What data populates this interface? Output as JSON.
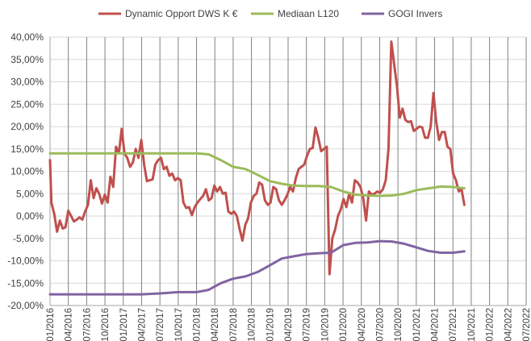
{
  "chart_data": {
    "type": "line",
    "title": "",
    "xlabel": "",
    "ylabel": "",
    "ylim": [
      -20,
      40
    ],
    "yticks": [
      -20,
      -15,
      -10,
      -5,
      0,
      5,
      10,
      15,
      20,
      25,
      30,
      35,
      40
    ],
    "ytick_labels": [
      "-20,00%",
      "-15,00%",
      "-10,00%",
      "-5,00%",
      "0,00%",
      "5,00%",
      "10,00%",
      "15,00%",
      "20,00%",
      "25,00%",
      "30,00%",
      "35,00%",
      "40,00%"
    ],
    "xlim": [
      "2016-01-01",
      "2022-07-01"
    ],
    "xtick_labels": [
      "1/01/2016",
      "1/04/2016",
      "1/07/2016",
      "1/10/2016",
      "1/01/2017",
      "1/04/2017",
      "1/07/2017",
      "1/10/2017",
      "1/01/2018",
      "1/04/2018",
      "1/07/2018",
      "1/10/2018",
      "1/01/2019",
      "1/04/2019",
      "1/07/2019",
      "1/10/2019",
      "1/01/2020",
      "1/04/2020",
      "1/07/2020",
      "1/10/2020",
      "1/01/2021",
      "1/04/2021",
      "1/07/2021",
      "1/10/2021",
      "1/01/2022",
      "1/04/2022",
      "1/07/2022"
    ],
    "grid": true,
    "legend_position": "top",
    "series": [
      {
        "name": "Dynamic Opport DWS K €",
        "color": "#c0504d",
        "points": [
          [
            "2016-01-01",
            12.5
          ],
          [
            "2016-01-08",
            3.0
          ],
          [
            "2016-01-22",
            0.5
          ],
          [
            "2016-02-05",
            -3.5
          ],
          [
            "2016-02-19",
            -1.0
          ],
          [
            "2016-03-04",
            -2.8
          ],
          [
            "2016-03-18",
            -2.5
          ],
          [
            "2016-04-01",
            1.2
          ],
          [
            "2016-04-15",
            0.0
          ],
          [
            "2016-04-29",
            -1.2
          ],
          [
            "2016-05-13",
            -0.8
          ],
          [
            "2016-05-27",
            -0.3
          ],
          [
            "2016-06-10",
            -0.8
          ],
          [
            "2016-06-24",
            1.0
          ],
          [
            "2016-07-08",
            2.5
          ],
          [
            "2016-07-22",
            8.0
          ],
          [
            "2016-08-05",
            4.0
          ],
          [
            "2016-08-19",
            6.2
          ],
          [
            "2016-09-02",
            5.0
          ],
          [
            "2016-09-16",
            2.8
          ],
          [
            "2016-09-30",
            4.8
          ],
          [
            "2016-10-14",
            3.0
          ],
          [
            "2016-10-28",
            8.8
          ],
          [
            "2016-11-11",
            6.5
          ],
          [
            "2016-11-25",
            15.5
          ],
          [
            "2016-12-09",
            14.0
          ],
          [
            "2016-12-23",
            19.5
          ],
          [
            "2017-01-06",
            14.0
          ],
          [
            "2017-01-20",
            13.0
          ],
          [
            "2017-02-03",
            11.0
          ],
          [
            "2017-02-17",
            12.0
          ],
          [
            "2017-03-03",
            15.0
          ],
          [
            "2017-03-17",
            13.0
          ],
          [
            "2017-03-31",
            17.0
          ],
          [
            "2017-04-14",
            11.5
          ],
          [
            "2017-04-28",
            7.8
          ],
          [
            "2017-05-12",
            8.0
          ],
          [
            "2017-05-26",
            8.2
          ],
          [
            "2017-06-09",
            11.5
          ],
          [
            "2017-06-23",
            12.5
          ],
          [
            "2017-07-07",
            13.0
          ],
          [
            "2017-07-21",
            10.5
          ],
          [
            "2017-08-04",
            11.0
          ],
          [
            "2017-08-18",
            9.0
          ],
          [
            "2017-09-01",
            9.5
          ],
          [
            "2017-09-15",
            8.0
          ],
          [
            "2017-09-29",
            8.5
          ],
          [
            "2017-10-13",
            8.0
          ],
          [
            "2017-10-27",
            3.0
          ],
          [
            "2017-11-10",
            1.8
          ],
          [
            "2017-11-24",
            2.0
          ],
          [
            "2017-12-08",
            0.2
          ],
          [
            "2017-12-22",
            2.0
          ],
          [
            "2018-01-05",
            3.0
          ],
          [
            "2018-01-19",
            3.8
          ],
          [
            "2018-02-02",
            4.5
          ],
          [
            "2018-02-16",
            6.0
          ],
          [
            "2018-03-02",
            3.5
          ],
          [
            "2018-03-16",
            4.0
          ],
          [
            "2018-03-30",
            6.8
          ],
          [
            "2018-04-13",
            5.5
          ],
          [
            "2018-04-27",
            6.5
          ],
          [
            "2018-05-11",
            5.0
          ],
          [
            "2018-05-25",
            5.2
          ],
          [
            "2018-06-08",
            1.0
          ],
          [
            "2018-06-22",
            0.5
          ],
          [
            "2018-07-06",
            1.0
          ],
          [
            "2018-07-20",
            0.0
          ],
          [
            "2018-08-03",
            -3.0
          ],
          [
            "2018-08-17",
            -5.5
          ],
          [
            "2018-08-31",
            -2.0
          ],
          [
            "2018-09-14",
            -0.5
          ],
          [
            "2018-09-28",
            3.0
          ],
          [
            "2018-10-12",
            4.5
          ],
          [
            "2018-10-26",
            5.0
          ],
          [
            "2018-11-09",
            7.5
          ],
          [
            "2018-11-23",
            7.0
          ],
          [
            "2018-12-07",
            3.5
          ],
          [
            "2018-12-21",
            2.5
          ],
          [
            "2019-01-04",
            3.0
          ],
          [
            "2019-01-18",
            6.5
          ],
          [
            "2019-02-01",
            6.0
          ],
          [
            "2019-02-15",
            3.5
          ],
          [
            "2019-03-01",
            2.5
          ],
          [
            "2019-03-15",
            3.5
          ],
          [
            "2019-03-29",
            4.8
          ],
          [
            "2019-04-12",
            6.5
          ],
          [
            "2019-04-26",
            5.5
          ],
          [
            "2019-05-10",
            8.5
          ],
          [
            "2019-05-24",
            10.5
          ],
          [
            "2019-06-07",
            11.0
          ],
          [
            "2019-06-21",
            11.5
          ],
          [
            "2019-07-05",
            13.5
          ],
          [
            "2019-07-19",
            15.0
          ],
          [
            "2019-08-02",
            15.2
          ],
          [
            "2019-08-16",
            19.8
          ],
          [
            "2019-08-30",
            17.5
          ],
          [
            "2019-09-13",
            14.5
          ],
          [
            "2019-09-27",
            15.0
          ],
          [
            "2019-10-11",
            15.5
          ],
          [
            "2019-10-25",
            -13.0
          ],
          [
            "2019-11-08",
            -5.0
          ],
          [
            "2019-11-22",
            -3.0
          ],
          [
            "2019-12-06",
            0.0
          ],
          [
            "2019-12-20",
            1.5
          ],
          [
            "2020-01-03",
            3.8
          ],
          [
            "2020-01-17",
            2.0
          ],
          [
            "2020-01-31",
            5.0
          ],
          [
            "2020-02-14",
            3.0
          ],
          [
            "2020-02-28",
            8.0
          ],
          [
            "2020-03-13",
            7.5
          ],
          [
            "2020-03-27",
            6.5
          ],
          [
            "2020-04-10",
            4.0
          ],
          [
            "2020-04-24",
            -1.0
          ],
          [
            "2020-05-08",
            5.5
          ],
          [
            "2020-05-22",
            4.8
          ],
          [
            "2020-06-05",
            5.0
          ],
          [
            "2020-06-19",
            5.5
          ],
          [
            "2020-07-03",
            5.2
          ],
          [
            "2020-07-17",
            6.0
          ],
          [
            "2020-07-31",
            8.0
          ],
          [
            "2020-08-14",
            15.0
          ],
          [
            "2020-08-28",
            39.0
          ],
          [
            "2020-09-11",
            34.0
          ],
          [
            "2020-09-25",
            29.0
          ],
          [
            "2020-10-09",
            22.0
          ],
          [
            "2020-10-23",
            24.0
          ],
          [
            "2020-11-06",
            21.5
          ],
          [
            "2020-11-20",
            21.0
          ],
          [
            "2020-12-04",
            21.2
          ],
          [
            "2020-12-18",
            19.0
          ],
          [
            "2021-01-01",
            19.5
          ],
          [
            "2021-01-15",
            20.0
          ],
          [
            "2021-01-29",
            19.8
          ],
          [
            "2021-02-12",
            17.5
          ],
          [
            "2021-02-26",
            17.5
          ],
          [
            "2021-03-12",
            20.0
          ],
          [
            "2021-03-26",
            27.5
          ],
          [
            "2021-04-09",
            21.0
          ],
          [
            "2021-04-23",
            17.0
          ],
          [
            "2021-05-07",
            18.8
          ],
          [
            "2021-05-21",
            18.8
          ],
          [
            "2021-06-04",
            15.5
          ],
          [
            "2021-06-18",
            15.0
          ],
          [
            "2021-07-02",
            9.5
          ],
          [
            "2021-07-16",
            8.0
          ],
          [
            "2021-07-30",
            5.5
          ],
          [
            "2021-08-13",
            6.0
          ],
          [
            "2021-08-27",
            2.5
          ]
        ]
      },
      {
        "name": "Mediaan L120",
        "color": "#9bbb59",
        "points": [
          [
            "2016-01-01",
            14.0
          ],
          [
            "2016-04-01",
            14.0
          ],
          [
            "2016-07-01",
            14.0
          ],
          [
            "2016-10-01",
            14.0
          ],
          [
            "2017-01-01",
            14.0
          ],
          [
            "2017-04-01",
            14.0
          ],
          [
            "2017-07-01",
            14.0
          ],
          [
            "2017-10-01",
            14.0
          ],
          [
            "2018-01-01",
            14.0
          ],
          [
            "2018-03-01",
            13.8
          ],
          [
            "2018-05-01",
            12.5
          ],
          [
            "2018-07-01",
            11.0
          ],
          [
            "2018-09-01",
            10.5
          ],
          [
            "2018-11-01",
            9.2
          ],
          [
            "2019-01-01",
            7.8
          ],
          [
            "2019-03-01",
            7.2
          ],
          [
            "2019-05-01",
            6.8
          ],
          [
            "2019-07-01",
            6.7
          ],
          [
            "2019-09-01",
            6.7
          ],
          [
            "2019-11-01",
            6.5
          ],
          [
            "2020-01-01",
            5.5
          ],
          [
            "2020-03-01",
            4.8
          ],
          [
            "2020-05-01",
            4.6
          ],
          [
            "2020-07-01",
            4.5
          ],
          [
            "2020-09-01",
            4.6
          ],
          [
            "2020-11-01",
            5.0
          ],
          [
            "2021-01-01",
            5.8
          ],
          [
            "2021-03-01",
            6.2
          ],
          [
            "2021-05-01",
            6.6
          ],
          [
            "2021-07-01",
            6.5
          ],
          [
            "2021-08-27",
            6.2
          ]
        ]
      },
      {
        "name": "GOGI Invers",
        "color": "#8064a2",
        "points": [
          [
            "2016-01-01",
            -17.5
          ],
          [
            "2016-07-01",
            -17.5
          ],
          [
            "2017-01-01",
            -17.5
          ],
          [
            "2017-04-01",
            -17.5
          ],
          [
            "2017-07-01",
            -17.3
          ],
          [
            "2017-10-01",
            -17.0
          ],
          [
            "2018-01-01",
            -17.0
          ],
          [
            "2018-03-01",
            -16.5
          ],
          [
            "2018-05-01",
            -15.0
          ],
          [
            "2018-07-01",
            -14.0
          ],
          [
            "2018-09-01",
            -13.5
          ],
          [
            "2018-11-01",
            -12.5
          ],
          [
            "2019-01-01",
            -11.0
          ],
          [
            "2019-03-01",
            -9.5
          ],
          [
            "2019-05-01",
            -9.0
          ],
          [
            "2019-07-01",
            -8.5
          ],
          [
            "2019-09-01",
            -8.3
          ],
          [
            "2019-11-01",
            -8.2
          ],
          [
            "2020-01-01",
            -6.5
          ],
          [
            "2020-03-01",
            -6.0
          ],
          [
            "2020-05-01",
            -5.9
          ],
          [
            "2020-07-01",
            -5.6
          ],
          [
            "2020-09-01",
            -5.7
          ],
          [
            "2020-11-01",
            -6.2
          ],
          [
            "2021-01-01",
            -7.0
          ],
          [
            "2021-03-01",
            -7.8
          ],
          [
            "2021-05-01",
            -8.2
          ],
          [
            "2021-07-01",
            -8.2
          ],
          [
            "2021-08-27",
            -7.9
          ]
        ]
      }
    ]
  }
}
